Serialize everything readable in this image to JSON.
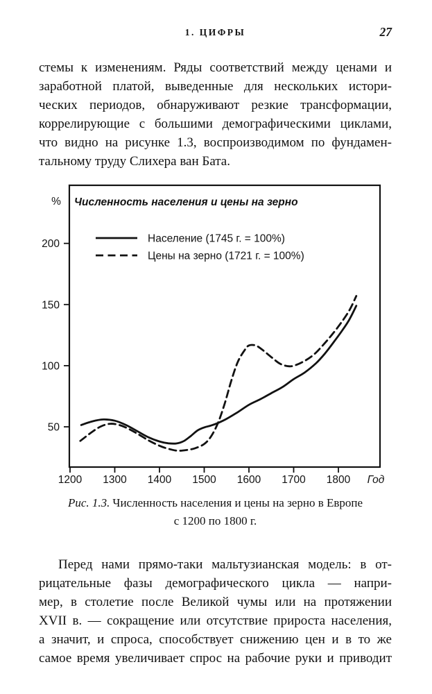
{
  "page": {
    "header": {
      "chapter": "1. ЦИФРЫ",
      "page_number": "27"
    },
    "paragraph1": {
      "lines": [
        "стемы к изменениям. Ряды соответствий между ценами и",
        "заработной платой, выведенные для нескольких истори-",
        "ческих периодов, обнаруживают резкие трансформации,",
        "коррелирующие с большими демографическими циклами,",
        "что видно на рисунке 1.3, воспроизводимом по фундамен-",
        "тальному труду Слихера ван Бата."
      ]
    },
    "figure_caption": {
      "label": "Рис. 1.3.",
      "line1": "Численность населения и цены на зерно в Европе",
      "line2": "с 1200 по 1800 г."
    },
    "paragraph2": {
      "lines": [
        "Перед нами прямо-таки мальтузианская модель: в от-",
        "рицательные фазы демографического цикла — напри-",
        "мер, в столетие после Великой чумы или на протяжении",
        "XVII в. — сокращение или отсутствие прироста населения,",
        "а значит, и спроса, способствует снижению цен и в то же",
        "самое время увеличивает спрос на рабочие руки и приводит"
      ]
    }
  },
  "chart_data": {
    "type": "line",
    "title": "Численность населения и цены на зерно",
    "y_axis_unit": "%",
    "x_axis_label": "Год",
    "y_ticks": [
      200,
      150,
      100,
      50
    ],
    "x_ticks": [
      1200,
      1300,
      1400,
      1500,
      1600,
      1700,
      1800
    ],
    "x_range": [
      1200,
      1890
    ],
    "y_range": [
      17,
      248
    ],
    "grid": false,
    "legend_position": "inside-top-left",
    "ink_color": "#121212",
    "series": [
      {
        "name": "Население (1745 г. = 100%)",
        "style": "solid",
        "points": [
          [
            1225,
            51.5
          ],
          [
            1250,
            54.5
          ],
          [
            1275,
            56
          ],
          [
            1300,
            55
          ],
          [
            1325,
            51.5
          ],
          [
            1350,
            46.5
          ],
          [
            1375,
            41.5
          ],
          [
            1400,
            38
          ],
          [
            1420,
            36.5
          ],
          [
            1440,
            36.5
          ],
          [
            1455,
            38.5
          ],
          [
            1470,
            42.5
          ],
          [
            1485,
            47
          ],
          [
            1500,
            49.5
          ],
          [
            1515,
            51
          ],
          [
            1530,
            53
          ],
          [
            1550,
            56.5
          ],
          [
            1575,
            62
          ],
          [
            1600,
            68
          ],
          [
            1625,
            72.5
          ],
          [
            1650,
            77.5
          ],
          [
            1675,
            82.5
          ],
          [
            1700,
            89
          ],
          [
            1725,
            94.5
          ],
          [
            1750,
            102
          ],
          [
            1770,
            110
          ],
          [
            1790,
            119.5
          ],
          [
            1810,
            129.5
          ],
          [
            1825,
            138
          ],
          [
            1840,
            149
          ]
        ]
      },
      {
        "name": "Цены на зерно (1721 г. = 100%)",
        "style": "dashed",
        "points": [
          [
            1223,
            38.5
          ],
          [
            1250,
            46
          ],
          [
            1270,
            50.5
          ],
          [
            1290,
            52.5
          ],
          [
            1310,
            51.5
          ],
          [
            1330,
            48.5
          ],
          [
            1350,
            44.5
          ],
          [
            1375,
            39
          ],
          [
            1400,
            34.5
          ],
          [
            1420,
            32
          ],
          [
            1440,
            30.5
          ],
          [
            1460,
            31
          ],
          [
            1480,
            32.5
          ],
          [
            1500,
            36
          ],
          [
            1515,
            42
          ],
          [
            1530,
            52.5
          ],
          [
            1545,
            68
          ],
          [
            1560,
            87
          ],
          [
            1575,
            103
          ],
          [
            1590,
            112.5
          ],
          [
            1600,
            116.5
          ],
          [
            1615,
            116.5
          ],
          [
            1630,
            113
          ],
          [
            1650,
            107
          ],
          [
            1670,
            101.5
          ],
          [
            1690,
            99.5
          ],
          [
            1705,
            100.5
          ],
          [
            1725,
            104
          ],
          [
            1745,
            109
          ],
          [
            1765,
            116.5
          ],
          [
            1785,
            125
          ],
          [
            1805,
            134.5
          ],
          [
            1825,
            145.5
          ],
          [
            1840,
            157
          ]
        ]
      }
    ]
  }
}
